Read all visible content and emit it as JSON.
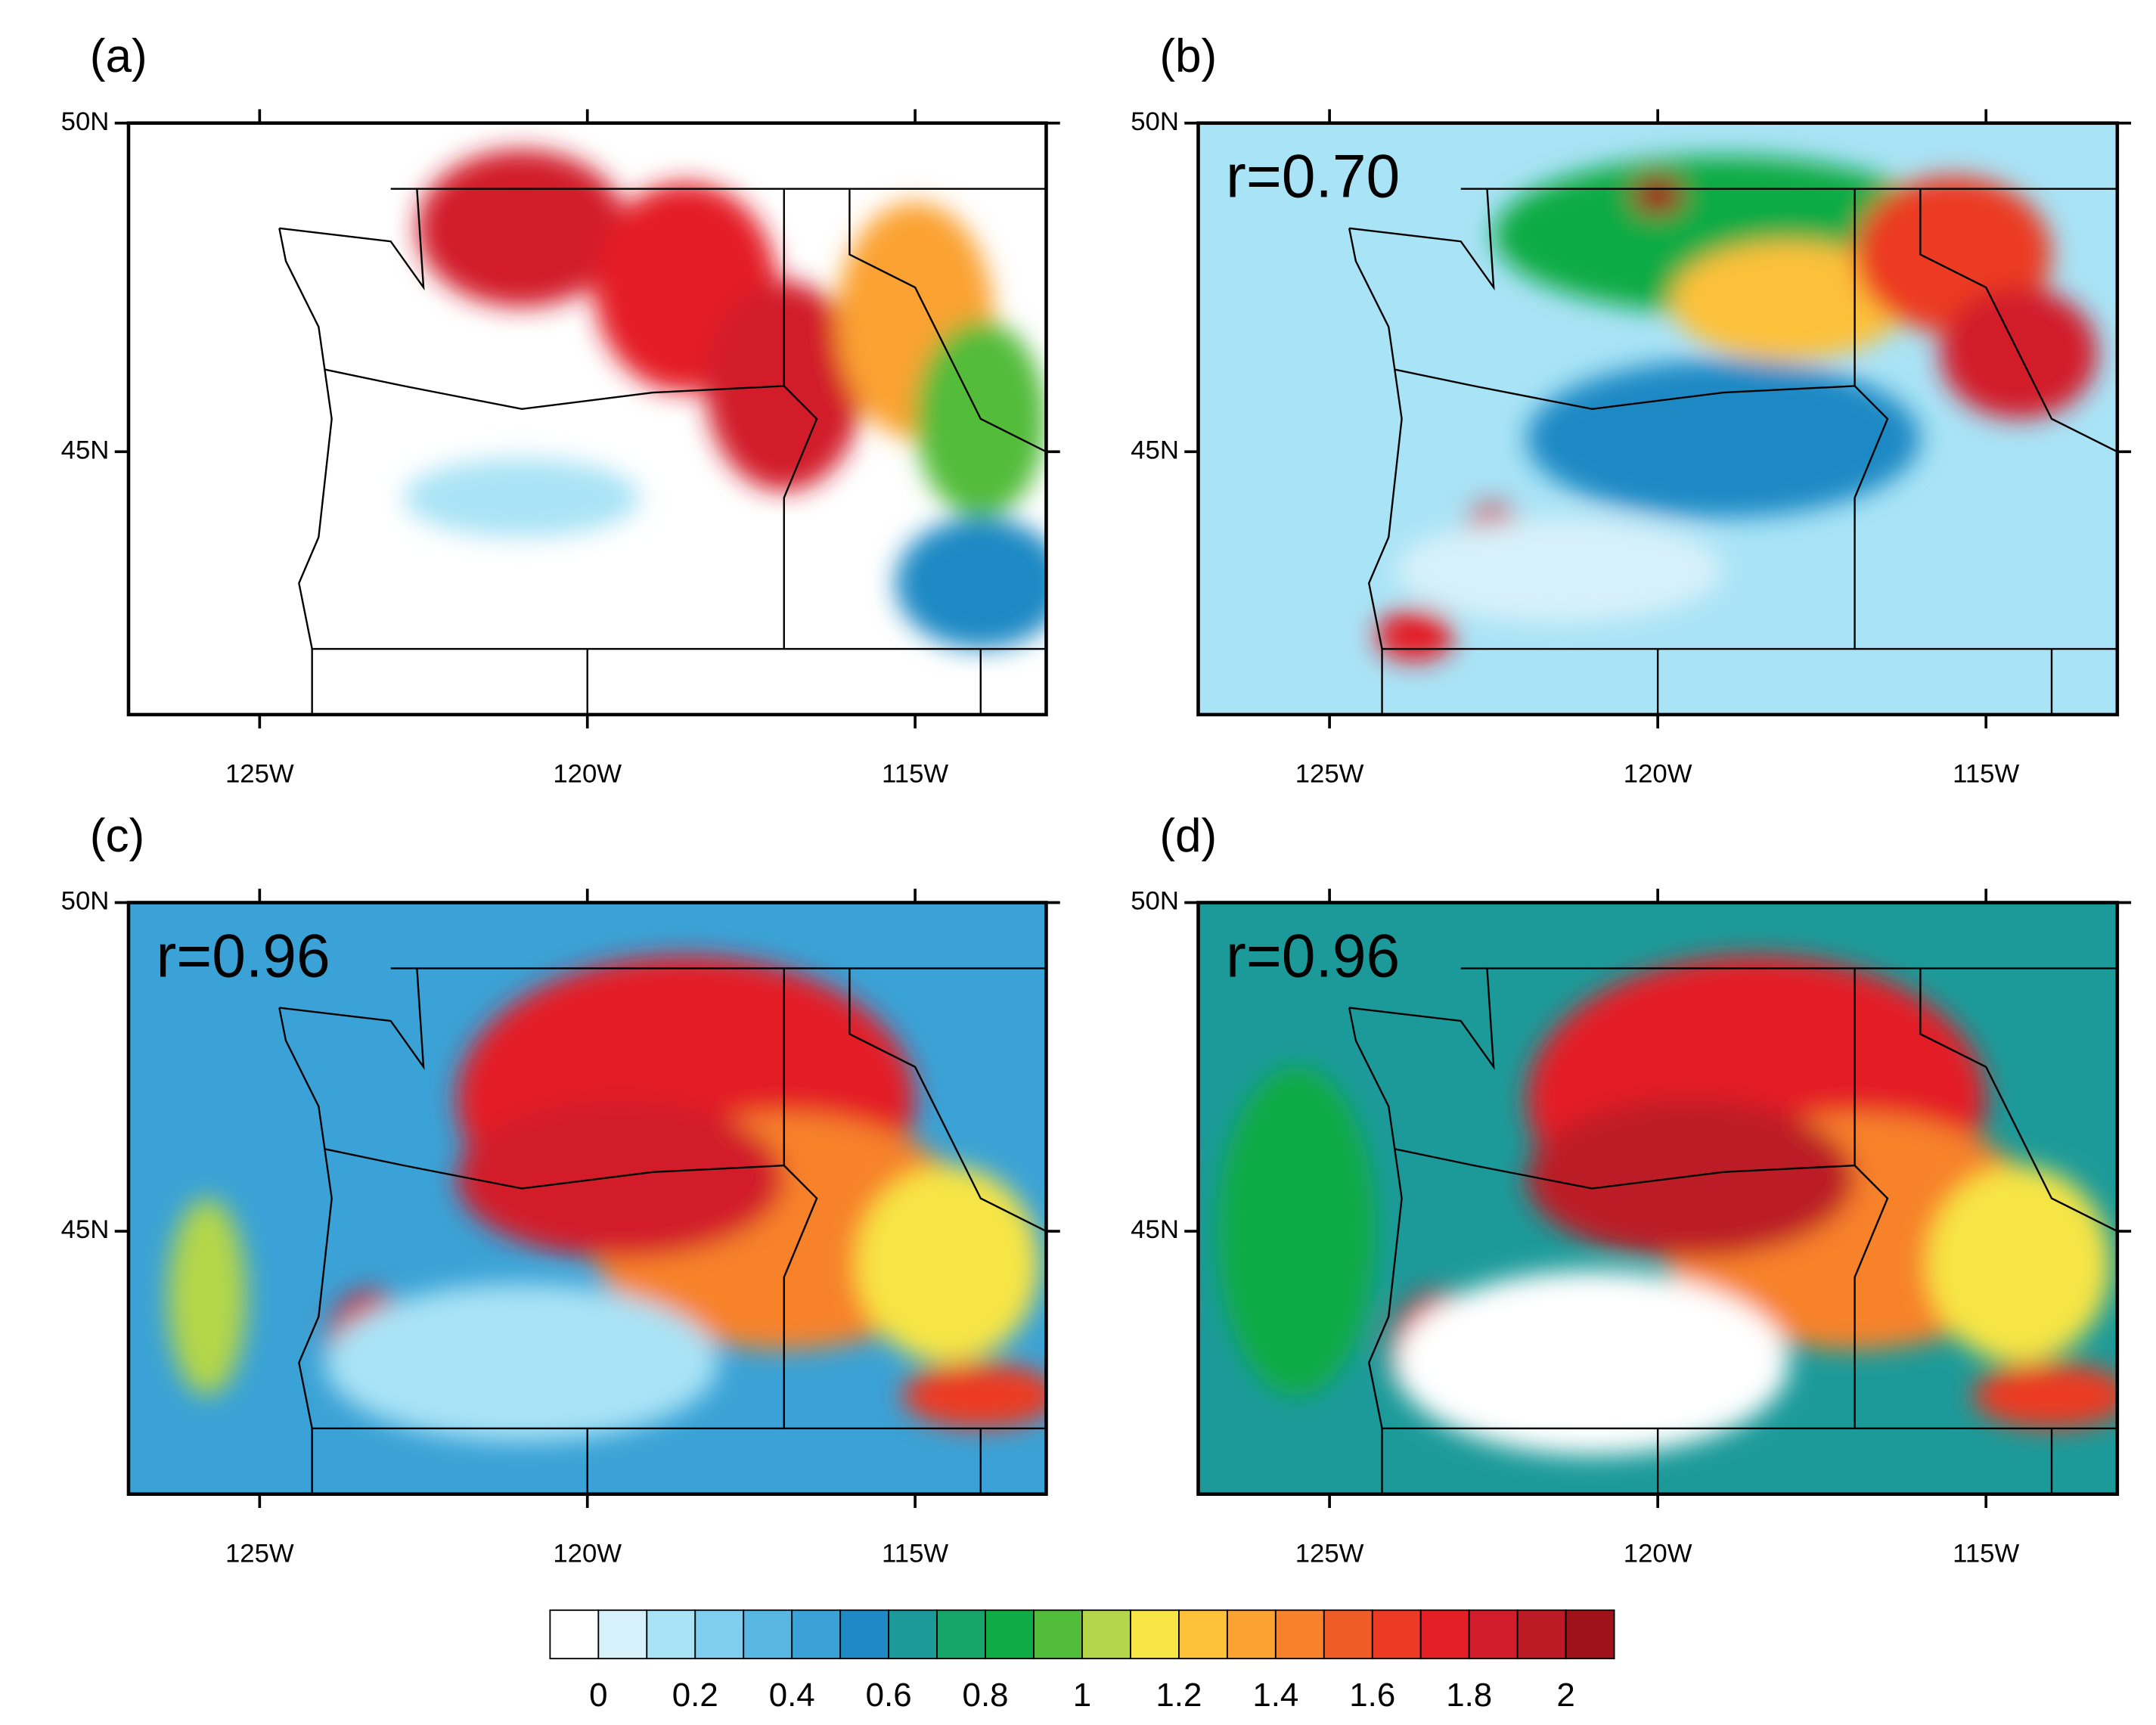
{
  "panels": [
    {
      "label": "(a)"
    },
    {
      "label": "(b)",
      "r": "r=0.70"
    },
    {
      "label": "(c)",
      "r": "r=0.96"
    },
    {
      "label": "(d)",
      "r": "r=0.96"
    }
  ],
  "map_axes": {
    "xlim": [
      -127,
      -113
    ],
    "ylim": [
      41,
      50
    ],
    "xticks": [
      {
        "value": -125,
        "label": "125W"
      },
      {
        "value": -120,
        "label": "120W"
      },
      {
        "value": -115,
        "label": "115W"
      }
    ],
    "yticks": [
      {
        "value": 45,
        "label": "45N"
      },
      {
        "value": 50,
        "label": "50N"
      }
    ]
  },
  "colorbar": {
    "ticks": [
      0,
      0.2,
      0.4,
      0.6,
      0.8,
      1,
      1.2,
      1.4,
      1.6,
      1.8,
      2
    ],
    "colors": [
      "#ffffff",
      "#d7f1fa",
      "#a9e3f6",
      "#7fcdef",
      "#58b7e2",
      "#3aa2d6",
      "#1e89c4",
      "#1c9a9a",
      "#17a66a",
      "#0fab45",
      "#52bc3b",
      "#b4d64a",
      "#f7e545",
      "#fdc13a",
      "#fba232",
      "#f7822b",
      "#f05c26",
      "#ec3a24",
      "#e41f26",
      "#d21c2b",
      "#bc1a25",
      "#a0121a"
    ]
  }
}
